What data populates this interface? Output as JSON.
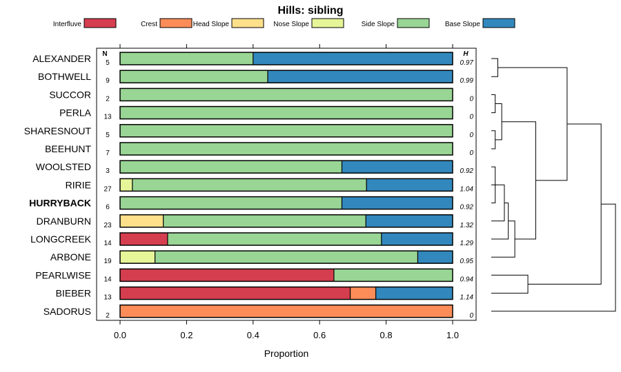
{
  "chart_data": {
    "type": "bar",
    "stacked": true,
    "orientation": "horizontal",
    "title": "Hills: sibling",
    "xlabel": "Proportion",
    "ylabel": "",
    "xlim": [
      0,
      1
    ],
    "xticks": [
      "0.0",
      "0.2",
      "0.4",
      "0.6",
      "0.8",
      "1.0"
    ],
    "xtick_values": [
      0,
      0.2,
      0.4,
      0.6,
      0.8,
      1.0
    ],
    "n_header": "N",
    "h_header": "H",
    "legend_position": "top",
    "series": [
      {
        "name": "Interfluve",
        "color": "#d53e4f"
      },
      {
        "name": "Crest",
        "color": "#fc8d59"
      },
      {
        "name": "Head Slope",
        "color": "#fee08b"
      },
      {
        "name": "Nose Slope",
        "color": "#e6f598"
      },
      {
        "name": "Side Slope",
        "color": "#99d594"
      },
      {
        "name": "Base Slope",
        "color": "#3288bd"
      }
    ],
    "rows": [
      {
        "label": "ALEXANDER",
        "n": "5",
        "h": "0.97",
        "bold": false,
        "values": [
          0,
          0,
          0,
          0,
          0.4,
          0.6
        ]
      },
      {
        "label": "BOTHWELL",
        "n": "9",
        "h": "0.99",
        "bold": false,
        "values": [
          0,
          0,
          0,
          0,
          0.444,
          0.556
        ]
      },
      {
        "label": "SUCCOR",
        "n": "2",
        "h": "0",
        "bold": false,
        "values": [
          0,
          0,
          0,
          0,
          1.0,
          0
        ]
      },
      {
        "label": "PERLA",
        "n": "13",
        "h": "0",
        "bold": false,
        "values": [
          0,
          0,
          0,
          0,
          1.0,
          0
        ]
      },
      {
        "label": "SHARESNOUT",
        "n": "5",
        "h": "0",
        "bold": false,
        "values": [
          0,
          0,
          0,
          0,
          1.0,
          0
        ]
      },
      {
        "label": "BEEHUNT",
        "n": "7",
        "h": "0",
        "bold": false,
        "values": [
          0,
          0,
          0,
          0,
          1.0,
          0
        ]
      },
      {
        "label": "WOOLSTED",
        "n": "3",
        "h": "0.92",
        "bold": false,
        "values": [
          0,
          0,
          0,
          0,
          0.667,
          0.333
        ]
      },
      {
        "label": "RIRIE",
        "n": "27",
        "h": "1.04",
        "bold": false,
        "values": [
          0,
          0,
          0,
          0.037,
          0.704,
          0.259
        ]
      },
      {
        "label": "HURRYBACK",
        "n": "6",
        "h": "0.92",
        "bold": true,
        "values": [
          0,
          0,
          0,
          0,
          0.667,
          0.333
        ]
      },
      {
        "label": "DRANBURN",
        "n": "23",
        "h": "1.32",
        "bold": false,
        "values": [
          0,
          0,
          0.13,
          0,
          0.609,
          0.261
        ]
      },
      {
        "label": "LONGCREEK",
        "n": "14",
        "h": "1.29",
        "bold": false,
        "values": [
          0.143,
          0,
          0,
          0,
          0.643,
          0.214
        ]
      },
      {
        "label": "ARBONE",
        "n": "19",
        "h": "0.95",
        "bold": false,
        "values": [
          0,
          0,
          0,
          0.105,
          0.79,
          0.105
        ]
      },
      {
        "label": "PEARLWISE",
        "n": "14",
        "h": "0.94",
        "bold": false,
        "values": [
          0.643,
          0,
          0,
          0,
          0.357,
          0
        ]
      },
      {
        "label": "BIEBER",
        "n": "13",
        "h": "1.14",
        "bold": false,
        "values": [
          0.692,
          0.077,
          0,
          0,
          0,
          0.231
        ]
      },
      {
        "label": "SADORUS",
        "n": "2",
        "h": "0",
        "bold": false,
        "values": [
          0,
          1.0,
          0,
          0,
          0,
          0
        ]
      }
    ],
    "dendrogram": {
      "leaves": [
        "ALEXANDER",
        "BOTHWELL",
        "SUCCOR",
        "PERLA",
        "SHARESNOUT",
        "BEEHUNT",
        "WOOLSTED",
        "RIRIE",
        "HURRYBACK",
        "DRANBURN",
        "LONGCREEK",
        "ARBONE",
        "PEARLWISE",
        "BIEBER",
        "SADORUS"
      ],
      "merges": [
        {
          "left": 0,
          "right": 1,
          "height": 0.05
        },
        {
          "left": 2,
          "right": 3,
          "height": 0.03
        },
        {
          "left": 4,
          "right": 5,
          "height": 0.03
        },
        {
          "left": 6,
          "right": 8,
          "height": 0.03
        },
        {
          "left": -2,
          "right": -3,
          "height": 0.08
        },
        {
          "left": -4,
          "right": 7,
          "height": 0.06
        },
        {
          "left": -6,
          "right": 9,
          "height": 0.1
        },
        {
          "left": -7,
          "right": 10,
          "height": 0.13
        },
        {
          "left": -8,
          "right": 11,
          "height": 0.18
        },
        {
          "left": 12,
          "right": 13,
          "height": 0.28
        },
        {
          "left": -5,
          "right": -9,
          "height": 0.34
        },
        {
          "left": -1,
          "right": -11,
          "height": 0.58
        },
        {
          "left": -12,
          "right": -10,
          "height": 0.84
        },
        {
          "left": -13,
          "right": 14,
          "height": 0.95
        }
      ]
    }
  }
}
